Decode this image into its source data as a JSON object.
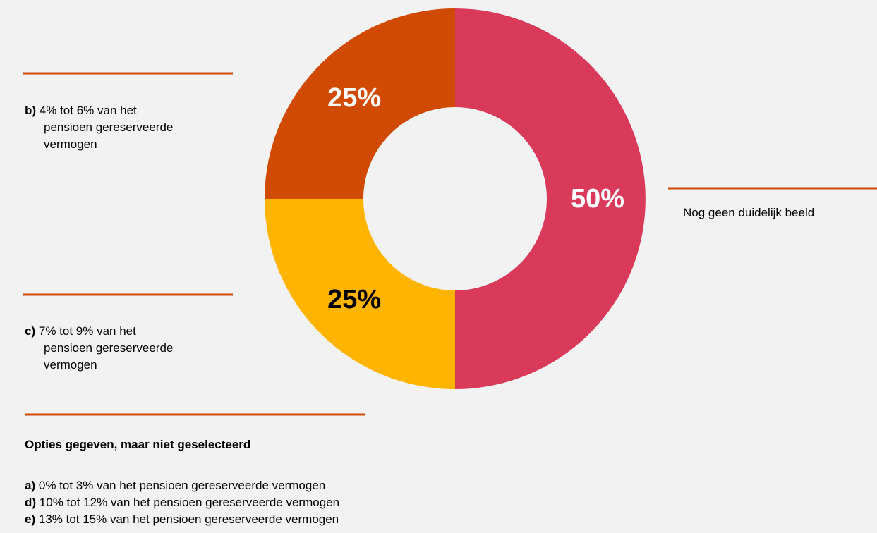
{
  "chart_data": {
    "type": "donut",
    "categories": [
      "Nog geen duidelijk beeld",
      "7% tot 9% van het pensioen gereserveerde vermogen",
      "4% tot 6% van het pensioen gereserveerde vermogen"
    ],
    "category_prefixes": [
      null,
      "c)",
      "b)"
    ],
    "values": [
      50,
      25,
      25
    ],
    "value_labels": [
      "50%",
      "25%",
      "25%"
    ],
    "colors": [
      "#d93a5a",
      "#ffb400",
      "#d04a02"
    ],
    "value_label_colors": [
      "#ffffff",
      "#000000",
      "#ffffff"
    ]
  },
  "notes": {
    "title": "Opties gegeven, maar niet geselecteerd",
    "items": [
      {
        "prefix": "a)",
        "text": "0% tot 3% van het pensioen gereserveerde vermogen"
      },
      {
        "prefix": "d)",
        "text": "10% tot 12% van het pensioen gereserveerde vermogen"
      },
      {
        "prefix": "e)",
        "text": "13% tot 15% van het pensioen gereserveerde vermogen"
      }
    ]
  }
}
